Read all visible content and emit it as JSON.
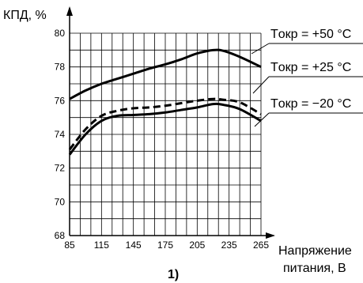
{
  "chart_data": {
    "type": "line",
    "ylabel": "КПД, %",
    "xlabel_line1": "Напряжение",
    "xlabel_line2": "питания, В",
    "subtitle": "1)",
    "xlim": [
      85,
      265
    ],
    "ylim": [
      68,
      80
    ],
    "x_ticks": [
      85,
      115,
      145,
      175,
      205,
      235,
      265
    ],
    "y_ticks": [
      68,
      70,
      72,
      74,
      76,
      78,
      80
    ],
    "grid": true,
    "x": [
      85,
      100,
      115,
      130,
      145,
      160,
      175,
      190,
      205,
      220,
      230,
      245,
      265
    ],
    "series": [
      {
        "name": "Tокр = +50 °C",
        "style": "solid",
        "values": [
          76.1,
          76.6,
          77.0,
          77.3,
          77.6,
          77.9,
          78.15,
          78.45,
          78.8,
          79.0,
          78.95,
          78.6,
          78.0
        ]
      },
      {
        "name": "Tокр = +25 °C",
        "style": "dashed",
        "values": [
          73.1,
          74.3,
          75.1,
          75.4,
          75.55,
          75.6,
          75.7,
          75.85,
          76.0,
          76.1,
          76.05,
          75.9,
          75.2
        ]
      },
      {
        "name": "Tокр = −20 °C",
        "style": "solid",
        "values": [
          72.8,
          74.0,
          74.8,
          75.1,
          75.15,
          75.2,
          75.3,
          75.45,
          75.6,
          75.8,
          75.75,
          75.5,
          74.8
        ]
      }
    ],
    "colors": {
      "line": "#000000",
      "grid": "#000000"
    }
  }
}
